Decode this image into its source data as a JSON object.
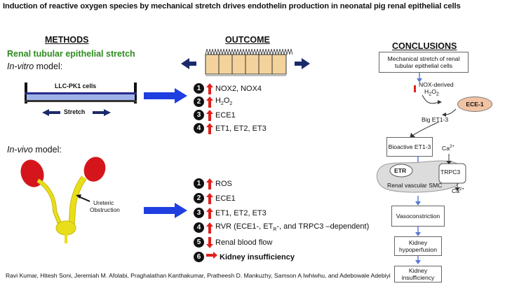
{
  "title": "Induction of reactive oxygen species by mechanical stretch drives endothelin production in neonatal pig renal epithelial cells",
  "methods": {
    "header": "METHODS",
    "subtitle": "Renal tubular epithelial stretch",
    "invitro_prefix": "In-vitro",
    "invitro_suffix": " model:",
    "cells_label": "LLC-PK1 cells",
    "stretch_label": "Stretch",
    "invivo_prefix": "In-vivo",
    "invivo_suffix": " model:",
    "obstruction_line1": "Ureteric",
    "obstruction_line2": "Obstruction"
  },
  "outcome": {
    "header": "OUTCOME",
    "invitro": [
      {
        "n": "1",
        "dir": "up",
        "text": "NOX2, NOX4"
      },
      {
        "n": "2",
        "dir": "up",
        "text": "H",
        "sub": "2",
        "text2": "O",
        "sub2": "2"
      },
      {
        "n": "3",
        "dir": "up",
        "text": "ECE1"
      },
      {
        "n": "4",
        "dir": "up",
        "text": "ET1, ET2, ET3"
      }
    ],
    "invivo": [
      {
        "n": "1",
        "dir": "up",
        "text": "ROS"
      },
      {
        "n": "2",
        "dir": "up",
        "text": "ECE1"
      },
      {
        "n": "3",
        "dir": "up",
        "text": "ET1, ET2, ET3"
      },
      {
        "n": "4",
        "dir": "up",
        "text": "RVR (ECE1-, ET",
        "sub": "R",
        "text2": "-, and TRPC3 –dependent)"
      },
      {
        "n": "5",
        "dir": "down",
        "text": "Renal blood flow"
      },
      {
        "n": "6",
        "dir": "right",
        "text": "Kidney insufficiency",
        "bold": true
      }
    ]
  },
  "conclusions": {
    "header": "CONCLUSIONS",
    "stretch_box": "Mechanical stretch of renal tubular epithelial cells",
    "nox_line1": "NOX-derived",
    "nox_line2": "H",
    "nox_sub1": "2",
    "nox_line2b": "O",
    "nox_sub2": "2",
    "ece1": "ECE-1",
    "big_et": "Big ET1-3",
    "bioactive": "Bioactive ET1-3",
    "ca_top": "Ca",
    "ca_sup": "2+",
    "etr": "ETR",
    "trpc3": "TRPC3",
    "smc": "Renal vascular  SMC",
    "ca_bottom": "Ca",
    "vasoconstriction": "Vasoconstriction",
    "hypoperfusion": "Kidney hypoperfusion",
    "insufficiency": "Kidney insufficiency"
  },
  "credits": "Ravi Kumar, Hitesh Soni, Jeremiah M. Afolabi, Praghalathan Kanthakumar, Pratheesh D. Mankuzhy, Samson A Iwhiwhu, and Adebowale Adebiyi",
  "colors": {
    "red": "#e0201b",
    "blue": "#1f3fe0",
    "green": "#2e8b1f",
    "kidney": "#d4161c",
    "ureter": "#e8df1a",
    "ece_fill": "#f2c3a3",
    "cells": "#f3d39b",
    "gray_cell": "#dcdcdc"
  }
}
